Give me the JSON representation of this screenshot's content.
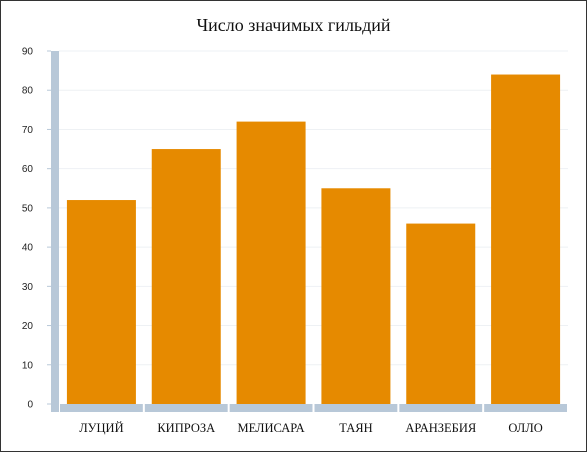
{
  "chart_data": {
    "type": "bar",
    "title": "Число значимых гильдий",
    "xlabel": "",
    "ylabel": "",
    "categories": [
      "ЛУЦИЙ",
      "КИПРОЗА",
      "МЕЛИСАРА",
      "ТАЯН",
      "АРАНЗЕБИЯ",
      "ОЛЛО"
    ],
    "values": [
      52,
      65,
      72,
      55,
      46,
      84
    ],
    "ylim": [
      0,
      90
    ],
    "yticks": [
      "0",
      "10",
      "20",
      "30",
      "40",
      "50",
      "60",
      "70",
      "80",
      "90"
    ],
    "grid": true,
    "legend": "none",
    "colors": {
      "bar": "#e68a00",
      "axis": "#b8c8d8",
      "grid": "#eef1f4"
    }
  }
}
